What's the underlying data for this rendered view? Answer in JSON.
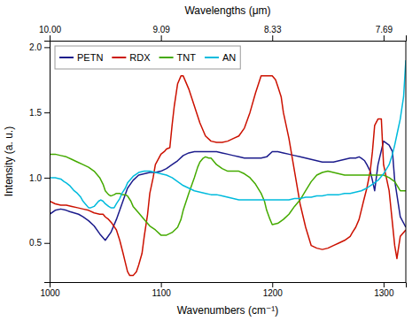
{
  "chart_data": {
    "type": "line",
    "xlabel": "Wavenumbers (cm⁻¹)",
    "ylabel": "Intensity (a. u.)",
    "x2label": "Wavelengths (μm)",
    "xlim": [
      1000,
      1320
    ],
    "ylim": [
      0.2,
      2.05
    ],
    "x2lim": [
      1000,
      1320
    ],
    "xticks": [
      1000,
      1100,
      1200,
      1300
    ],
    "yticks": [
      0.5,
      {
        "value": 1,
        "label": "1.0"
      },
      1.5,
      {
        "value": 2,
        "label": "2.0"
      }
    ],
    "x2ticks": [
      {
        "value": 1000,
        "label": "10.00"
      },
      {
        "value": 1100,
        "label": "9.09"
      },
      {
        "value": 1200,
        "label": "8.33"
      },
      {
        "value": 1300,
        "label": "7.69"
      }
    ],
    "grid": false,
    "legend": "upper left",
    "series": [
      {
        "name": "PETN",
        "color": "#1c1c8c",
        "x": [
          1000,
          1005,
          1010,
          1015,
          1018,
          1022,
          1026,
          1030,
          1035,
          1040,
          1045,
          1050,
          1055,
          1060,
          1065,
          1070,
          1075,
          1080,
          1085,
          1090,
          1095,
          1100,
          1105,
          1110,
          1115,
          1120,
          1125,
          1130,
          1135,
          1140,
          1145,
          1150,
          1155,
          1160,
          1165,
          1170,
          1175,
          1180,
          1185,
          1190,
          1195,
          1200,
          1205,
          1210,
          1215,
          1220,
          1225,
          1230,
          1235,
          1240,
          1245,
          1250,
          1255,
          1260,
          1265,
          1270,
          1272,
          1275,
          1278,
          1280,
          1283,
          1285,
          1288,
          1290,
          1292,
          1295,
          1300,
          1305,
          1308,
          1310,
          1315,
          1320
        ],
        "values": [
          0.72,
          0.75,
          0.76,
          0.75,
          0.74,
          0.73,
          0.72,
          0.7,
          0.67,
          0.63,
          0.57,
          0.52,
          0.58,
          0.68,
          0.8,
          0.92,
          0.98,
          1.02,
          1.03,
          1.04,
          1.04,
          1.05,
          1.07,
          1.1,
          1.13,
          1.17,
          1.19,
          1.2,
          1.2,
          1.2,
          1.2,
          1.2,
          1.19,
          1.18,
          1.17,
          1.16,
          1.15,
          1.15,
          1.15,
          1.15,
          1.16,
          1.2,
          1.2,
          1.19,
          1.18,
          1.17,
          1.16,
          1.15,
          1.14,
          1.13,
          1.12,
          1.12,
          1.12,
          1.13,
          1.14,
          1.15,
          1.15,
          1.15,
          1.16,
          1.15,
          1.13,
          1.1,
          1.05,
          0.98,
          0.9,
          1.1,
          1.28,
          1.25,
          1.2,
          0.98,
          0.7,
          0.62
        ]
      },
      {
        "name": "RDX",
        "color": "#cc1100",
        "x": [
          1000,
          1005,
          1010,
          1015,
          1020,
          1025,
          1030,
          1035,
          1040,
          1045,
          1048,
          1050,
          1053,
          1056,
          1060,
          1063,
          1066,
          1068,
          1070,
          1072,
          1075,
          1078,
          1080,
          1083,
          1085,
          1088,
          1090,
          1093,
          1095,
          1100,
          1103,
          1105,
          1108,
          1110,
          1112,
          1115,
          1118,
          1120,
          1125,
          1130,
          1135,
          1140,
          1145,
          1150,
          1155,
          1160,
          1165,
          1170,
          1175,
          1180,
          1185,
          1190,
          1195,
          1198,
          1200,
          1203,
          1205,
          1208,
          1210,
          1215,
          1220,
          1225,
          1230,
          1235,
          1240,
          1245,
          1250,
          1255,
          1260,
          1265,
          1270,
          1272,
          1275,
          1278,
          1280,
          1282,
          1285,
          1288,
          1290,
          1292,
          1295,
          1298,
          1300,
          1305,
          1308,
          1310,
          1312,
          1315,
          1320
        ],
        "values": [
          0.82,
          0.8,
          0.79,
          0.79,
          0.78,
          0.77,
          0.76,
          0.75,
          0.73,
          0.72,
          0.72,
          0.7,
          0.68,
          0.65,
          0.6,
          0.52,
          0.42,
          0.35,
          0.28,
          0.25,
          0.25,
          0.28,
          0.33,
          0.42,
          0.55,
          0.72,
          0.88,
          1.0,
          1.1,
          1.18,
          1.2,
          1.22,
          1.23,
          1.4,
          1.55,
          1.72,
          1.78,
          1.78,
          1.68,
          1.55,
          1.42,
          1.32,
          1.28,
          1.27,
          1.27,
          1.28,
          1.3,
          1.32,
          1.38,
          1.5,
          1.65,
          1.78,
          1.78,
          1.78,
          1.78,
          1.75,
          1.7,
          1.62,
          1.5,
          1.3,
          1.05,
          0.8,
          0.62,
          0.48,
          0.46,
          0.45,
          0.46,
          0.48,
          0.5,
          0.52,
          0.55,
          0.58,
          0.62,
          0.68,
          0.75,
          0.82,
          0.92,
          1.05,
          1.2,
          1.4,
          1.45,
          1.45,
          1.1,
          0.9,
          0.65,
          0.48,
          0.38,
          0.55,
          0.6
        ]
      },
      {
        "name": "TNT",
        "color": "#44aa00",
        "x": [
          1000,
          1005,
          1010,
          1015,
          1020,
          1025,
          1030,
          1035,
          1040,
          1042,
          1045,
          1048,
          1050,
          1053,
          1055,
          1058,
          1060,
          1063,
          1065,
          1068,
          1070,
          1073,
          1075,
          1080,
          1085,
          1090,
          1095,
          1100,
          1105,
          1110,
          1115,
          1118,
          1120,
          1125,
          1130,
          1133,
          1135,
          1138,
          1140,
          1143,
          1145,
          1148,
          1150,
          1155,
          1160,
          1165,
          1170,
          1175,
          1180,
          1185,
          1190,
          1193,
          1195,
          1198,
          1200,
          1205,
          1210,
          1215,
          1220,
          1225,
          1230,
          1235,
          1240,
          1245,
          1250,
          1255,
          1260,
          1265,
          1270,
          1275,
          1280,
          1285,
          1290,
          1295,
          1300,
          1305,
          1310,
          1315,
          1320
        ],
        "values": [
          1.18,
          1.18,
          1.17,
          1.16,
          1.14,
          1.12,
          1.1,
          1.08,
          1.05,
          1.03,
          1.0,
          0.95,
          0.9,
          0.87,
          0.86,
          0.87,
          0.88,
          0.88,
          0.87,
          0.87,
          0.86,
          0.82,
          0.78,
          0.73,
          0.68,
          0.63,
          0.6,
          0.56,
          0.56,
          0.58,
          0.62,
          0.68,
          0.75,
          0.88,
          1.0,
          1.08,
          1.12,
          1.15,
          1.16,
          1.15,
          1.15,
          1.12,
          1.1,
          1.07,
          1.05,
          1.05,
          1.05,
          1.03,
          1.0,
          0.95,
          0.88,
          0.82,
          0.75,
          0.68,
          0.64,
          0.65,
          0.68,
          0.72,
          0.78,
          0.83,
          0.9,
          0.97,
          1.02,
          1.04,
          1.05,
          1.04,
          1.03,
          1.02,
          1.02,
          1.02,
          1.02,
          1.02,
          1.02,
          1.02,
          1.02,
          1.0,
          0.97,
          0.9,
          0.9
        ]
      },
      {
        "name": "AN",
        "color": "#00bbdd",
        "x": [
          1000,
          1005,
          1010,
          1013,
          1015,
          1018,
          1020,
          1022,
          1025,
          1028,
          1030,
          1032,
          1035,
          1037,
          1040,
          1042,
          1044,
          1046,
          1048,
          1050,
          1053,
          1055,
          1058,
          1060,
          1063,
          1065,
          1068,
          1070,
          1075,
          1080,
          1085,
          1090,
          1095,
          1100,
          1105,
          1110,
          1115,
          1120,
          1125,
          1130,
          1135,
          1140,
          1145,
          1150,
          1155,
          1160,
          1165,
          1170,
          1175,
          1180,
          1185,
          1190,
          1195,
          1200,
          1205,
          1210,
          1215,
          1220,
          1225,
          1230,
          1235,
          1240,
          1245,
          1250,
          1255,
          1260,
          1265,
          1270,
          1275,
          1280,
          1285,
          1290,
          1295,
          1300,
          1305,
          1308,
          1310,
          1312,
          1315,
          1318,
          1320
        ],
        "values": [
          1.0,
          1.0,
          0.99,
          0.97,
          0.96,
          0.94,
          0.92,
          0.9,
          0.88,
          0.85,
          0.82,
          0.8,
          0.77,
          0.77,
          0.78,
          0.8,
          0.82,
          0.83,
          0.82,
          0.8,
          0.78,
          0.77,
          0.77,
          0.8,
          0.84,
          0.88,
          0.92,
          0.96,
          1.01,
          1.04,
          1.05,
          1.05,
          1.04,
          1.03,
          1.02,
          1.0,
          0.97,
          0.94,
          0.92,
          0.9,
          0.89,
          0.88,
          0.87,
          0.87,
          0.86,
          0.85,
          0.84,
          0.83,
          0.83,
          0.83,
          0.83,
          0.83,
          0.83,
          0.83,
          0.83,
          0.83,
          0.83,
          0.84,
          0.84,
          0.85,
          0.85,
          0.86,
          0.86,
          0.87,
          0.87,
          0.87,
          0.88,
          0.88,
          0.89,
          0.9,
          0.92,
          0.95,
          0.98,
          1.03,
          1.1,
          1.18,
          1.25,
          1.33,
          1.45,
          1.62,
          1.9
        ]
      }
    ]
  }
}
